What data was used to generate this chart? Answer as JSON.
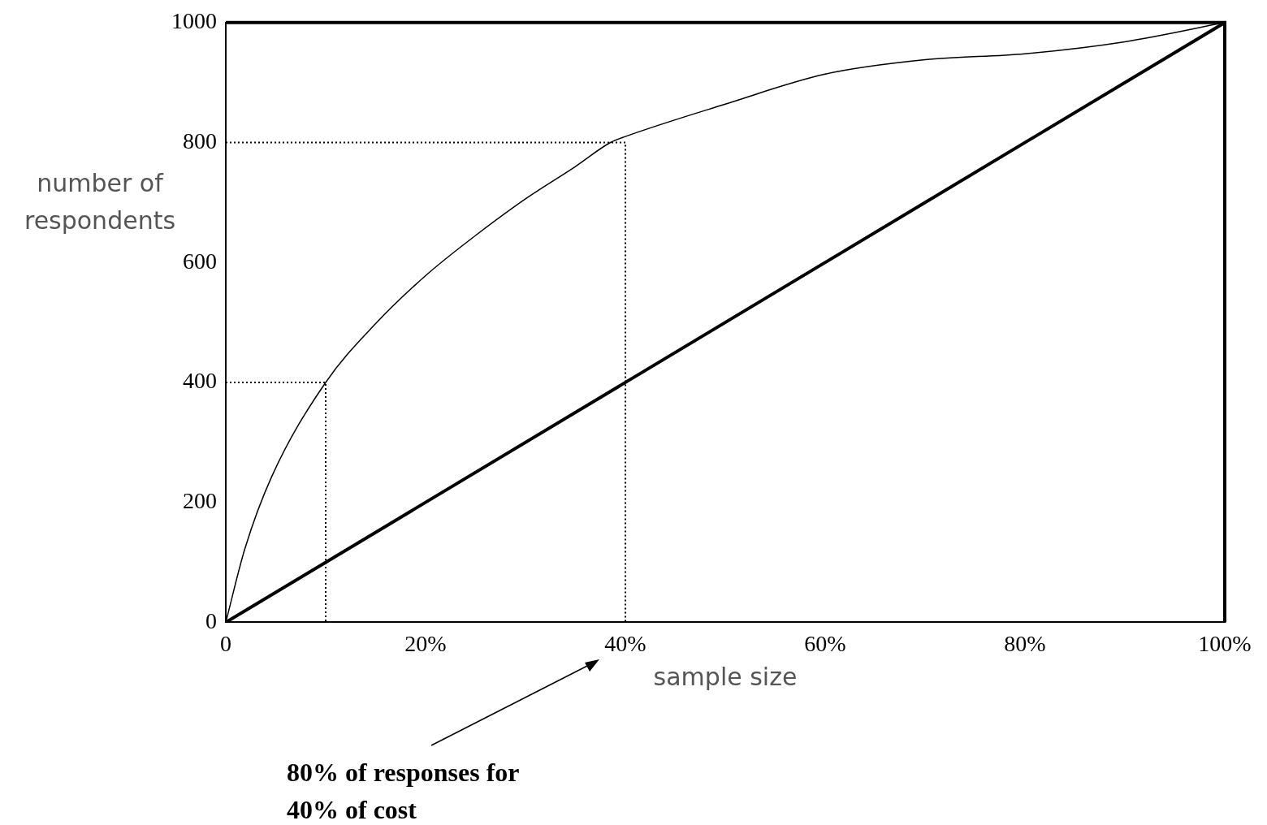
{
  "chart_data": {
    "type": "line",
    "xlabel": "sample size",
    "ylabel": "number of respondents",
    "annotations": [
      "80% of responses for 40% of cost"
    ],
    "xlim": [
      0,
      100
    ],
    "xticks": [
      {
        "value": 0,
        "label": "0"
      },
      {
        "value": 20,
        "label": "20%"
      },
      {
        "value": 40,
        "label": "40%"
      },
      {
        "value": 60,
        "label": "60%"
      },
      {
        "value": 80,
        "label": "80%"
      },
      {
        "value": 100,
        "label": "100%"
      }
    ],
    "ylim": [
      0,
      1000
    ],
    "yticks": [
      0,
      200,
      400,
      600,
      800,
      1000
    ],
    "grid": false,
    "legend": false,
    "marker": "none",
    "series": [
      {
        "color": "#000000",
        "line_style": "solid",
        "x": [
          0,
          1.9,
          4.6,
          10,
          15,
          20,
          25,
          30,
          35,
          38.5,
          40,
          50,
          60,
          70,
          80,
          90,
          100
        ],
        "values": [
          0,
          122,
          243,
          400,
          498,
          578,
          645,
          706,
          760,
          800,
          810,
          864,
          914,
          938,
          948,
          968,
          1000
        ]
      },
      {
        "color": "#000000",
        "line_style": "solid",
        "x": [
          0,
          100
        ],
        "values": [
          0,
          1000
        ]
      },
      {
        "color": "#000000",
        "line_style": "dotted",
        "x": [
          0,
          40,
          40
        ],
        "values": [
          800,
          800,
          0
        ]
      },
      {
        "color": "#000000",
        "line_style": "dotted",
        "x": [
          0,
          10,
          10
        ],
        "values": [
          400,
          400,
          0
        ]
      }
    ]
  }
}
